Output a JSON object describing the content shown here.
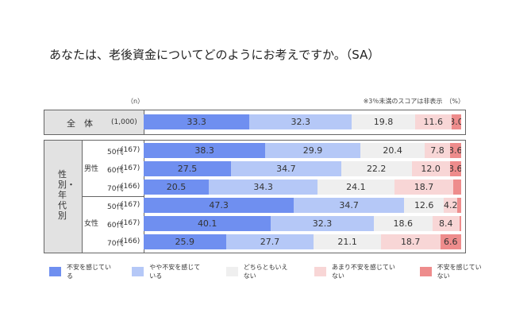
{
  "title": "あなたは、老後資金についてどのようにお考えですか。（SA）",
  "n_label": "（n）",
  "note": "※3％未満のスコアは非表示　（%）",
  "chart_data": {
    "type": "bar",
    "orientation": "horizontal",
    "stacked": true,
    "unit": "%",
    "label_threshold": 3,
    "series": [
      {
        "name": "不安を感じている",
        "color": "#6f8ff0"
      },
      {
        "name": "やや不安を感じている",
        "color": "#b5c8f7"
      },
      {
        "name": "どちらともいえない",
        "color": "#efefef"
      },
      {
        "name": "あまり不安を感じていない",
        "color": "#f8d6d6"
      },
      {
        "name": "不安を感じていない",
        "color": "#ee8c8c"
      }
    ],
    "total": {
      "label": "全　体",
      "n": "(1,000)",
      "values": [
        33.3,
        32.3,
        19.8,
        11.6,
        3.0
      ]
    },
    "group_label": "性別・年代別",
    "groups": [
      {
        "label": "男性",
        "rows": [
          {
            "age": "50代",
            "n": "(167)",
            "values": [
              38.3,
              29.9,
              20.4,
              7.8,
              3.6
            ]
          },
          {
            "age": "60代",
            "n": "(167)",
            "values": [
              27.5,
              34.7,
              22.2,
              12.0,
              3.6
            ]
          },
          {
            "age": "70代",
            "n": "(166)",
            "values": [
              20.5,
              34.3,
              24.1,
              18.7,
              2.4
            ]
          }
        ]
      },
      {
        "label": "女性",
        "rows": [
          {
            "age": "50代",
            "n": "(167)",
            "values": [
              47.3,
              34.7,
              12.6,
              4.2,
              1.2
            ]
          },
          {
            "age": "60代",
            "n": "(167)",
            "values": [
              40.1,
              32.3,
              18.6,
              8.4,
              0.6
            ]
          },
          {
            "age": "70代",
            "n": "(166)",
            "values": [
              25.9,
              27.7,
              21.1,
              18.7,
              6.6
            ]
          }
        ]
      }
    ]
  }
}
